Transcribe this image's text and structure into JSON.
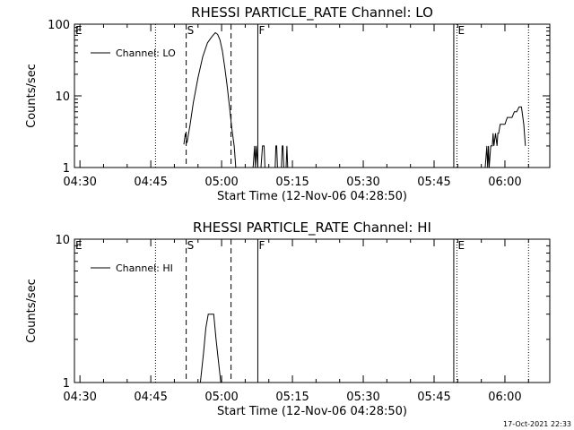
{
  "footer": {
    "timestamp": "17-Oct-2021 22:33"
  },
  "chart_data": [
    {
      "type": "line",
      "title": "RHESSI PARTICLE_RATE Channel: LO",
      "xlabel": "Start Time (12-Nov-06 04:28:50)",
      "ylabel": "Counts/sec",
      "yscale": "log",
      "xlim": [
        "04:28:50",
        "06:09:30"
      ],
      "ylim": [
        1,
        100
      ],
      "x_ticks": [
        "04:30",
        "04:45",
        "05:00",
        "05:15",
        "05:30",
        "05:45",
        "06:00"
      ],
      "y_ticks": [
        "1",
        "10",
        "100"
      ],
      "legend": "top-left",
      "series": [
        {
          "name": "Channel: LO",
          "x": [
            "04:52:00",
            "04:52:20",
            "04:52:40",
            "04:53:20",
            "04:54:00",
            "04:55:00",
            "04:56:00",
            "04:57:00",
            "04:58:00",
            "04:58:40",
            "04:59:10",
            "04:59:40",
            "05:00:10",
            "05:00:40",
            "05:01:10",
            "05:01:40",
            "05:02:10",
            "05:02:40",
            "05:03:00"
          ],
          "y": [
            2.1,
            3,
            2.2,
            4,
            8,
            18,
            35,
            55,
            68,
            76,
            72,
            60,
            42,
            25,
            14,
            7,
            3.5,
            2,
            1
          ],
          "segments": [
            {
              "x": [
                "05:06:40",
                "05:07:00",
                "05:07:10",
                "05:07:20",
                "05:07:40"
              ],
              "y": [
                1,
                2,
                1,
                2,
                1
              ]
            },
            {
              "x": [
                "05:08:20",
                "05:08:40",
                "05:09:00",
                "05:09:10",
                "05:11:20",
                "05:11:30",
                "05:11:40",
                "05:11:50",
                "05:12:40",
                "05:12:50",
                "05:13:00",
                "05:13:10",
                "05:13:40",
                "05:13:50",
                "05:14:00"
              ],
              "y": [
                1,
                2,
                2,
                1,
                1,
                2,
                2,
                1,
                1,
                2,
                2,
                1,
                1,
                2,
                1
              ]
            },
            {
              "x": [
                "05:55:50",
                "05:56:10",
                "05:56:20",
                "05:56:30",
                "05:56:40",
                "05:57:00",
                "05:57:20",
                "05:57:30",
                "05:57:40",
                "05:58:00",
                "05:58:20",
                "05:58:30",
                "05:58:40",
                "05:59:00",
                "05:59:30",
                "06:00:00",
                "06:00:30",
                "06:01:00",
                "06:01:30",
                "06:02:00",
                "06:02:30",
                "06:03:00",
                "06:03:30",
                "06:04:00",
                "06:04:20"
              ],
              "y": [
                1,
                2,
                1,
                2,
                1,
                2,
                2,
                3,
                2,
                3,
                2,
                3,
                3,
                4,
                4,
                4,
                5,
                5,
                5,
                6,
                6,
                7,
                7,
                4,
                2
              ]
            }
          ]
        }
      ],
      "markers": [
        {
          "label": "E",
          "x": "04:28:50",
          "style": "dotted",
          "show_line": false
        },
        {
          "label": "",
          "x": "04:46:00",
          "style": "dotted",
          "show_line": true
        },
        {
          "label": "S",
          "x": "04:52:30",
          "style": "dashed",
          "show_line": true
        },
        {
          "label": "",
          "x": "05:02:00",
          "style": "dashed",
          "show_line": true
        },
        {
          "label": "F",
          "x": "05:07:40",
          "style": "solid",
          "show_line": true
        },
        {
          "label": "",
          "x": "05:49:10",
          "style": "solid",
          "show_line": true
        },
        {
          "label": "E",
          "x": "05:49:50",
          "style": "dotted",
          "show_line": true
        },
        {
          "label": "",
          "x": "06:05:00",
          "style": "dotted",
          "show_line": true
        }
      ]
    },
    {
      "type": "line",
      "title": "RHESSI PARTICLE_RATE Channel: HI",
      "xlabel": "Start Time (12-Nov-06 04:28:50)",
      "ylabel": "Counts/sec",
      "yscale": "log",
      "xlim": [
        "04:28:50",
        "06:09:30"
      ],
      "ylim": [
        1,
        10
      ],
      "x_ticks": [
        "04:30",
        "04:45",
        "05:00",
        "05:15",
        "05:30",
        "05:45",
        "06:00"
      ],
      "y_ticks": [
        "1",
        "10"
      ],
      "legend": "top-left",
      "series": [
        {
          "name": "Channel: HI",
          "x": [
            "04:55:30",
            "04:56:10",
            "04:56:40",
            "04:57:10",
            "04:58:20",
            "04:58:50",
            "04:59:20",
            "04:59:50"
          ],
          "y": [
            1,
            1.6,
            2.4,
            3,
            3,
            2,
            1.4,
            1
          ],
          "segments": []
        }
      ],
      "markers": [
        {
          "label": "E",
          "x": "04:28:50",
          "style": "dotted",
          "show_line": false
        },
        {
          "label": "",
          "x": "04:46:00",
          "style": "dotted",
          "show_line": true
        },
        {
          "label": "S",
          "x": "04:52:30",
          "style": "dashed",
          "show_line": true
        },
        {
          "label": "",
          "x": "05:02:00",
          "style": "dashed",
          "show_line": true
        },
        {
          "label": "F",
          "x": "05:07:40",
          "style": "solid",
          "show_line": true
        },
        {
          "label": "",
          "x": "05:49:10",
          "style": "solid",
          "show_line": true
        },
        {
          "label": "E",
          "x": "05:49:50",
          "style": "dotted",
          "show_line": true
        },
        {
          "label": "",
          "x": "06:05:00",
          "style": "dotted",
          "show_line": true
        }
      ]
    }
  ]
}
